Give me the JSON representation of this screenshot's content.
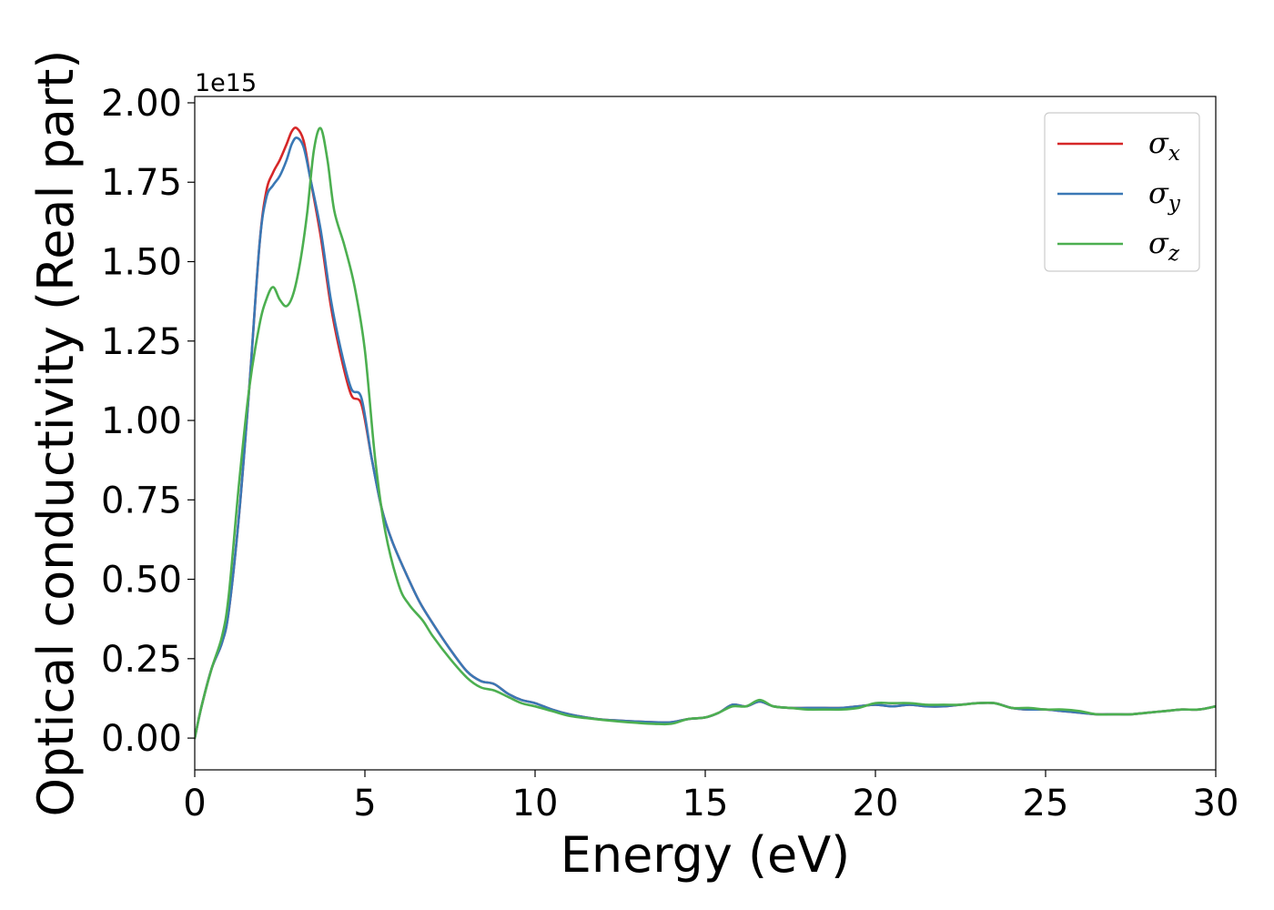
{
  "chart_data": {
    "type": "line",
    "xlabel": "Energy (eV)",
    "ylabel": "Optical conductivity (Real part)",
    "y_offset_text": "1e15",
    "y_scale_factor": 1000000000000000.0,
    "xlim": [
      0,
      30
    ],
    "ylim": [
      -0.1,
      2.02
    ],
    "xticks": [
      0,
      5,
      10,
      15,
      20,
      25,
      30
    ],
    "xtick_labels": [
      "0",
      "5",
      "10",
      "15",
      "20",
      "25",
      "30"
    ],
    "yticks": [
      0.0,
      0.25,
      0.5,
      0.75,
      1.0,
      1.25,
      1.5,
      1.75,
      2.0
    ],
    "ytick_labels": [
      "0.00",
      "0.25",
      "0.50",
      "0.75",
      "1.00",
      "1.25",
      "1.50",
      "1.75",
      "2.00"
    ],
    "grid": false,
    "legend_position": "top-right",
    "series": [
      {
        "name": "σx",
        "label_base": "σ",
        "label_sub": "x",
        "color": "#d62728",
        "x": [
          0,
          0.2,
          0.5,
          0.8,
          1.0,
          1.3,
          1.6,
          1.9,
          2.1,
          2.3,
          2.5,
          2.7,
          2.85,
          3.0,
          3.2,
          3.4,
          3.7,
          4.0,
          4.3,
          4.6,
          4.9,
          5.2,
          5.5,
          5.8,
          6.2,
          6.6,
          7.0,
          7.5,
          8.0,
          8.4,
          8.8,
          9.2,
          9.6,
          10.0,
          10.5,
          11.0,
          11.5,
          12.0,
          12.5,
          13.0,
          13.5,
          14.0,
          14.5,
          15.0,
          15.4,
          15.8,
          16.2,
          16.6,
          17.0,
          17.5,
          18.0,
          18.5,
          19.0,
          19.5,
          20.0,
          20.5,
          21.0,
          21.5,
          22.0,
          22.5,
          23.0,
          23.5,
          24.0,
          24.5,
          25.0,
          25.5,
          26.0,
          26.5,
          27.0,
          27.5,
          28.0,
          28.5,
          29.0,
          29.5,
          30.0
        ],
        "y": [
          0.0,
          0.1,
          0.22,
          0.3,
          0.4,
          0.7,
          1.1,
          1.55,
          1.72,
          1.78,
          1.82,
          1.87,
          1.91,
          1.92,
          1.88,
          1.76,
          1.58,
          1.36,
          1.2,
          1.08,
          1.05,
          0.88,
          0.72,
          0.62,
          0.52,
          0.43,
          0.36,
          0.28,
          0.21,
          0.18,
          0.17,
          0.14,
          0.12,
          0.11,
          0.09,
          0.075,
          0.065,
          0.058,
          0.055,
          0.052,
          0.05,
          0.05,
          0.06,
          0.065,
          0.08,
          0.105,
          0.1,
          0.115,
          0.1,
          0.095,
          0.095,
          0.095,
          0.095,
          0.1,
          0.105,
          0.1,
          0.105,
          0.1,
          0.1,
          0.105,
          0.11,
          0.11,
          0.095,
          0.09,
          0.09,
          0.085,
          0.08,
          0.075,
          0.075,
          0.075,
          0.08,
          0.085,
          0.09,
          0.09,
          0.1
        ]
      },
      {
        "name": "σy",
        "label_base": "σ",
        "label_sub": "y",
        "color": "#3a78b5",
        "x": [
          0,
          0.2,
          0.5,
          0.8,
          1.0,
          1.3,
          1.6,
          1.9,
          2.1,
          2.3,
          2.5,
          2.7,
          2.85,
          3.0,
          3.2,
          3.4,
          3.7,
          4.0,
          4.3,
          4.6,
          4.9,
          5.2,
          5.5,
          5.8,
          6.2,
          6.6,
          7.0,
          7.5,
          8.0,
          8.4,
          8.8,
          9.2,
          9.6,
          10.0,
          10.5,
          11.0,
          11.5,
          12.0,
          12.5,
          13.0,
          13.5,
          14.0,
          14.5,
          15.0,
          15.4,
          15.8,
          16.2,
          16.6,
          17.0,
          17.5,
          18.0,
          18.5,
          19.0,
          19.5,
          20.0,
          20.5,
          21.0,
          21.5,
          22.0,
          22.5,
          23.0,
          23.5,
          24.0,
          24.5,
          25.0,
          25.5,
          26.0,
          26.5,
          27.0,
          27.5,
          28.0,
          28.5,
          29.0,
          29.5,
          30.0
        ],
        "y": [
          0.0,
          0.1,
          0.22,
          0.3,
          0.4,
          0.7,
          1.1,
          1.55,
          1.7,
          1.74,
          1.77,
          1.82,
          1.87,
          1.89,
          1.86,
          1.76,
          1.6,
          1.38,
          1.22,
          1.1,
          1.07,
          0.88,
          0.72,
          0.62,
          0.52,
          0.43,
          0.36,
          0.28,
          0.21,
          0.18,
          0.17,
          0.14,
          0.12,
          0.11,
          0.09,
          0.075,
          0.065,
          0.058,
          0.055,
          0.052,
          0.05,
          0.05,
          0.06,
          0.065,
          0.08,
          0.105,
          0.1,
          0.115,
          0.1,
          0.095,
          0.095,
          0.095,
          0.095,
          0.1,
          0.105,
          0.1,
          0.105,
          0.1,
          0.1,
          0.105,
          0.11,
          0.11,
          0.095,
          0.09,
          0.09,
          0.085,
          0.08,
          0.075,
          0.075,
          0.075,
          0.08,
          0.085,
          0.09,
          0.09,
          0.1
        ]
      },
      {
        "name": "σz",
        "label_base": "σ",
        "label_sub": "z",
        "color": "#4caf50",
        "x": [
          0,
          0.2,
          0.5,
          0.8,
          1.0,
          1.3,
          1.6,
          1.9,
          2.1,
          2.3,
          2.5,
          2.7,
          2.9,
          3.1,
          3.3,
          3.5,
          3.7,
          3.9,
          4.1,
          4.4,
          4.7,
          5.0,
          5.3,
          5.6,
          6.0,
          6.3,
          6.7,
          7.0,
          7.5,
          8.0,
          8.4,
          8.8,
          9.2,
          9.6,
          10.0,
          10.5,
          11.0,
          11.5,
          12.0,
          12.5,
          13.0,
          13.5,
          14.0,
          14.5,
          15.0,
          15.4,
          15.8,
          16.2,
          16.6,
          17.0,
          17.5,
          18.0,
          18.5,
          19.0,
          19.5,
          20.0,
          20.5,
          21.0,
          21.5,
          22.0,
          22.5,
          23.0,
          23.5,
          24.0,
          24.5,
          25.0,
          25.5,
          26.0,
          26.5,
          27.0,
          27.5,
          28.0,
          28.5,
          29.0,
          29.5,
          30.0
        ],
        "y": [
          0.0,
          0.1,
          0.22,
          0.32,
          0.45,
          0.8,
          1.1,
          1.3,
          1.38,
          1.42,
          1.38,
          1.36,
          1.4,
          1.5,
          1.65,
          1.85,
          1.92,
          1.82,
          1.66,
          1.55,
          1.42,
          1.22,
          0.88,
          0.65,
          0.48,
          0.42,
          0.37,
          0.32,
          0.25,
          0.19,
          0.16,
          0.15,
          0.13,
          0.11,
          0.1,
          0.085,
          0.07,
          0.063,
          0.057,
          0.052,
          0.048,
          0.045,
          0.045,
          0.06,
          0.065,
          0.08,
          0.1,
          0.1,
          0.12,
          0.1,
          0.095,
          0.09,
          0.09,
          0.09,
          0.095,
          0.11,
          0.11,
          0.11,
          0.105,
          0.105,
          0.105,
          0.11,
          0.11,
          0.095,
          0.095,
          0.09,
          0.09,
          0.085,
          0.075,
          0.075,
          0.075,
          0.08,
          0.085,
          0.09,
          0.09,
          0.1
        ]
      }
    ]
  }
}
